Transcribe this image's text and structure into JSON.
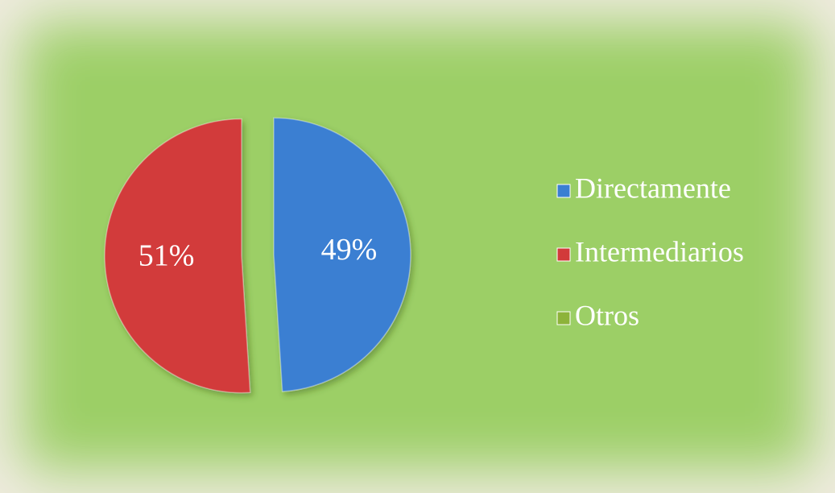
{
  "chart_data": {
    "type": "pie",
    "categories": [
      "Directamente",
      "Intermediarios",
      "Otros"
    ],
    "values": [
      49,
      51,
      0
    ],
    "value_labels": [
      "49%",
      "51%",
      null
    ],
    "colors": [
      "#3a7fd2",
      "#d23a3a",
      "#8db33a"
    ],
    "legend": "right"
  }
}
